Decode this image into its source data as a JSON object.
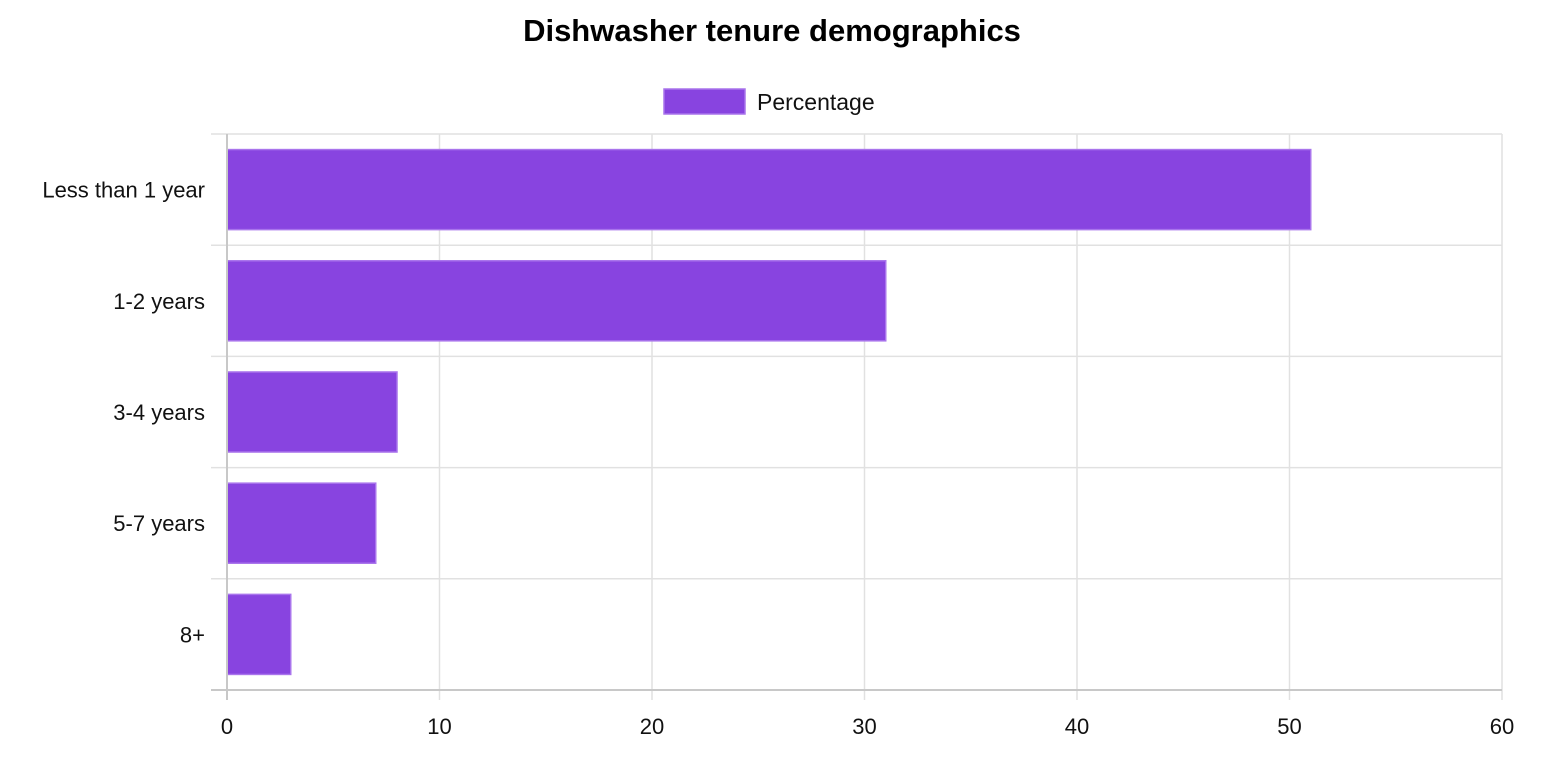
{
  "chart_data": {
    "type": "bar",
    "orientation": "horizontal",
    "title": "Dishwasher tenure demographics",
    "categories": [
      "Less than 1 year",
      "1-2 years",
      "3-4 years",
      "5-7 years",
      "8+"
    ],
    "series": [
      {
        "name": "Percentage",
        "values": [
          51,
          31,
          8,
          7,
          3
        ]
      }
    ],
    "xlim": [
      0,
      60
    ],
    "xticks": [
      "0",
      "10",
      "20",
      "30",
      "40",
      "50",
      "60"
    ],
    "grid": true,
    "legend_position": "top-center",
    "colors": {
      "bar_fill": "#8844e0",
      "bar_stroke": "#a974ec"
    }
  }
}
